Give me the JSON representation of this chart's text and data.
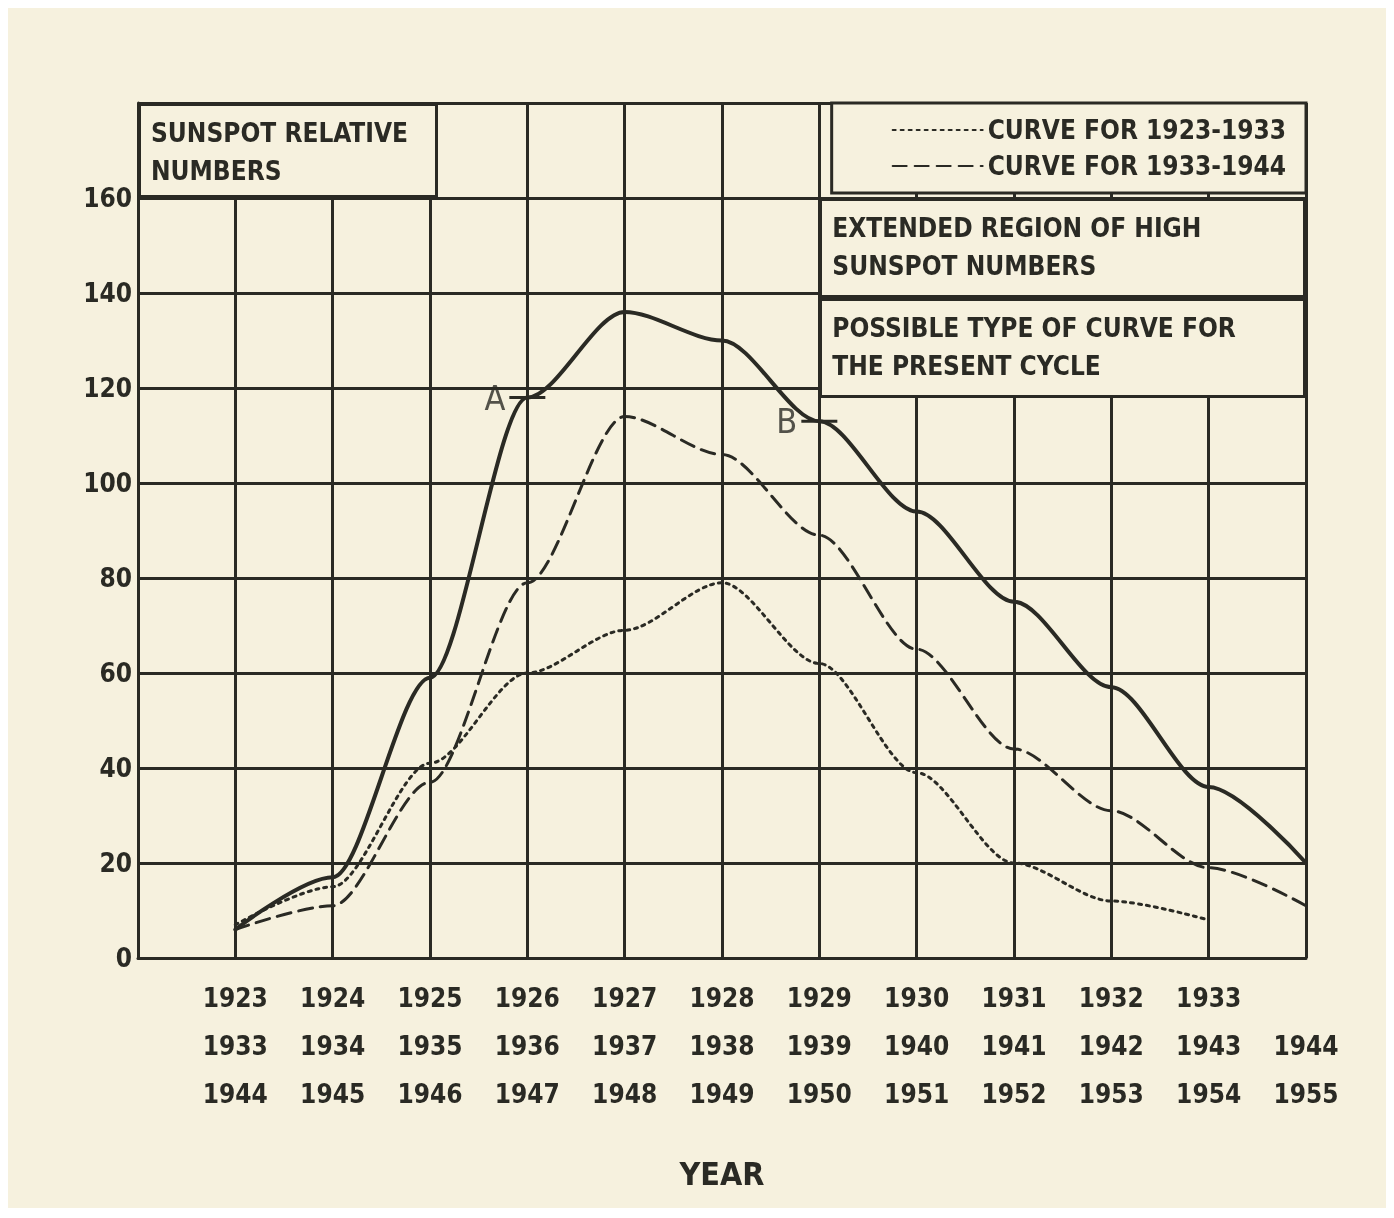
{
  "chart_data": {
    "type": "line",
    "ylabel": "SUNSPOT RELATIVE NUMBERS",
    "xlabel": "YEAR",
    "categories": [
      null,
      "1923\n1933\n1944",
      "1924\n1934\n1945",
      "1925\n1935\n1946",
      "1926\n1936\n1947",
      "1927\n1937\n1948",
      "1928\n1938\n1949",
      "1929\n1939\n1950",
      "1930\n1940\n1951",
      "1931\n1941\n1952",
      "1932\n1942\n1953",
      "1933\n1943\n1954",
      "\n1944\n1955"
    ],
    "ylim": [
      0,
      180
    ],
    "yticks": [
      0,
      20,
      40,
      60,
      80,
      100,
      120,
      140,
      160
    ],
    "grid": true,
    "legend": "top right",
    "marker": "none",
    "series": [
      {
        "name": "CURVE FOR 1923-1933",
        "color": "#2a2a24",
        "line_style": "dotted",
        "values": [
          null,
          7,
          15,
          41,
          60,
          69,
          79,
          62,
          39,
          20,
          12,
          8,
          null
        ]
      },
      {
        "name": "CURVE FOR 1933-1944",
        "color": "#2a2a24",
        "line_style": "dashed",
        "values": [
          null,
          6,
          11,
          37,
          79,
          114,
          106,
          89,
          65,
          44,
          31,
          19,
          11
        ]
      },
      {
        "color": "#2a2a24",
        "line_style": "solid",
        "values": [
          null,
          6,
          17,
          59,
          118,
          136,
          130,
          113,
          94,
          75,
          57,
          36,
          20
        ]
      }
    ],
    "annotations": [
      {
        "text": "A",
        "x": "1926\n1936\n1947",
        "y": 118
      },
      {
        "text": "B",
        "x": "1929\n1939\n1950",
        "y": 113
      },
      "EXTENDED REGION OF HIGH SUNSPOT NUMBERS",
      "POSSIBLE TYPE OF CURVE FOR THE PRESENT CYCLE"
    ]
  }
}
